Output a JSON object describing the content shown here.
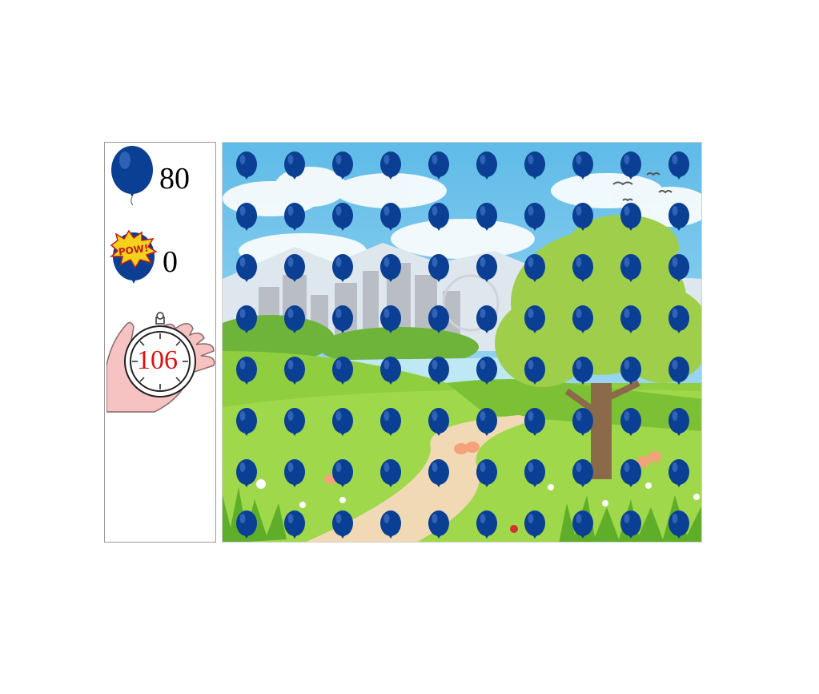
{
  "hud": {
    "balloons_remaining": "80",
    "balloons_popped": "0",
    "time_remaining": "106",
    "pow_text": "POW!"
  },
  "game": {
    "grid_columns": 10,
    "grid_rows": 8,
    "balloon_color": "#0b3f93",
    "balloon_highlight": "#3d6fc2"
  },
  "colors": {
    "sky": "#7ec8ee",
    "grass": "#8fcf3f",
    "path": "#f1d9b5",
    "timer_digits": "#e01010"
  }
}
